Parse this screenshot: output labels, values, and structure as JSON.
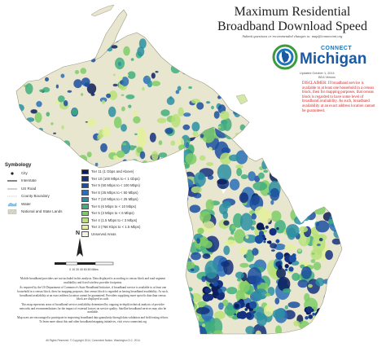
{
  "header": {
    "title_line1": "Maximum Residential",
    "title_line2": "Broadband Download Speed",
    "subtitle": "Submit questions or recommended changes to: map@connectmi.org"
  },
  "logo": {
    "connect": "CONNECT",
    "michigan": "Michigan",
    "updated": "Updated October 1, 2014",
    "version": "BEA Version"
  },
  "disclaimer": "DISCLAIMER: If broadband service is available to at least one household in a census block, then for mapping purposes, that census block is regarded to have some level of broadband availability. As such, broadband availability at an exact address location cannot be guaranteed.",
  "symbology": {
    "title": "Symbology",
    "items": [
      {
        "label": "City",
        "icon": "city-dot"
      },
      {
        "label": "Interstate",
        "icon": "interstate-line"
      },
      {
        "label": "US Road",
        "icon": "us-road-line"
      },
      {
        "label": "County Boundary",
        "icon": "county-boundary-line"
      },
      {
        "label": "Water",
        "icon": "water-swatch"
      },
      {
        "label": "National and State Lands",
        "icon": "public-lands-swatch"
      }
    ]
  },
  "tiers": [
    {
      "label": "Tier 11 (1 Gbps and Above)",
      "color": "#0b1e5b"
    },
    {
      "label": "Tier 10 (100 Mbps to < 1 Gbps)",
      "color": "#14307e"
    },
    {
      "label": "Tier 9 (50 Mbps to < 100 Mbps)",
      "color": "#1b4ea0"
    },
    {
      "label": "Tier 8 (25 Mbps to < 50 Mbps)",
      "color": "#2a6fb8"
    },
    {
      "label": "Tier 7 (10 Mbps to < 25 Mbps)",
      "color": "#2c8fa2"
    },
    {
      "label": "Tier 6 (6 Mbps to < 10 Mbps)",
      "color": "#3fae7c"
    },
    {
      "label": "Tier 5 (3 Mbps to < 6 Mbps)",
      "color": "#7fcc66"
    },
    {
      "label": "Tier 4 (1.5 Mbps to < 3 Mbps)",
      "color": "#b9e07a"
    },
    {
      "label": "Tier 3 (768 Kbps to < 1.5 Mbps)",
      "color": "#e4f09c"
    },
    {
      "label": "Unserved Areas",
      "color": "#f3f1e1"
    }
  ],
  "north_arrow": {
    "label": "N"
  },
  "scale": {
    "label": "0 10 20 40 60 80 Miles"
  },
  "notes": [
    "Mobile broadband providers are not included in this analysis. Data displayed is according to census block and road segment availability and fixed wireless provider footprints.",
    "As required by the US Department of Commerce's State Broadband Initiative, if broadband service is available to at least one household in a census block, then for mapping purposes, that census block is regarded as having broadband availability. As such, broadband availability at an exact address location cannot be guaranteed. Providers supplying more specific data than census block are displayed as such.",
    "This map represents areas of broadband service availability determined by ongoing in-depth technical analysis of provider networks and recommendations for the impact of external factors on service quality. Satellite broadband services may also be available.",
    "Map users are encouraged to participate in improving broadband data granularity through data validation and field testing efforts. To learn more about this and other broadband mapping initiatives, visit www.connectmi.org"
  ],
  "copyright": "All Rights Reserved. © Copyright 2014, Connected Nation, Washington D.C. 2014",
  "colors": {
    "land": "#e9e6cf",
    "water": "#ffffff",
    "title": "#1f1f1f",
    "disclaimer": "#d41f1f",
    "logo_blue": "#1b5aa0",
    "logo_green": "#3d9a3d"
  }
}
